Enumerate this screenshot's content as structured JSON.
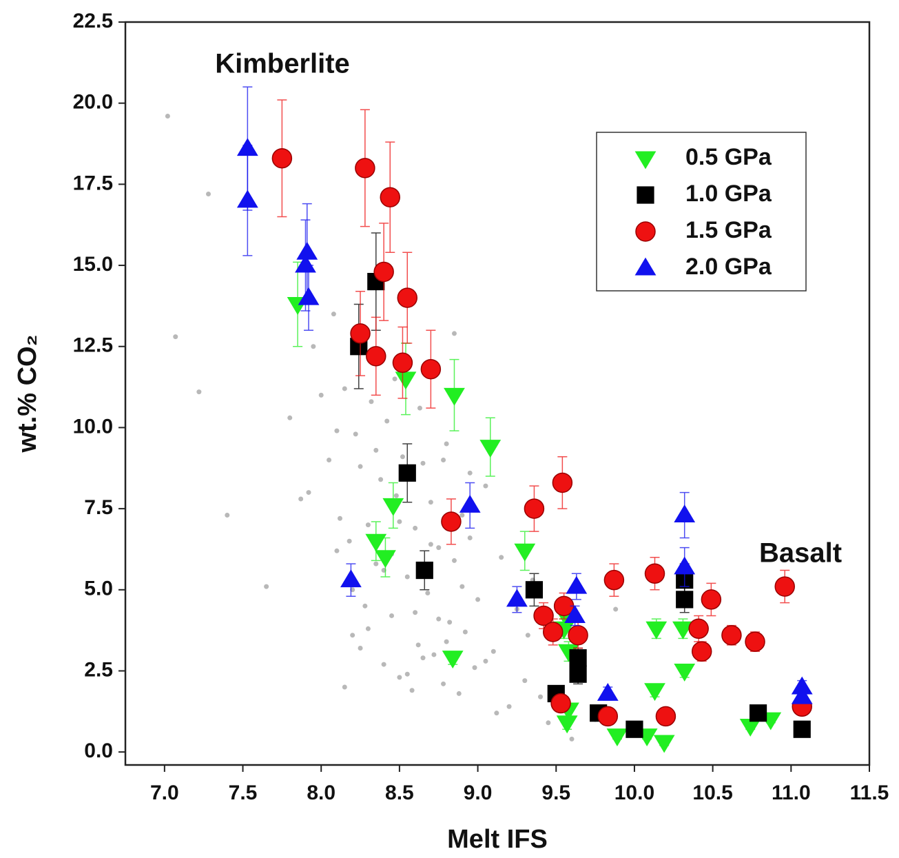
{
  "chart_data": {
    "type": "scatter",
    "x_label": "Melt IFS",
    "y_label": "wt.% CO₂",
    "annotations": [
      "Kimberlite",
      "Basalt"
    ],
    "xlim": [
      6.75,
      11.5
    ],
    "ylim": [
      -0.4,
      22.5
    ],
    "xticks": [
      {
        "value": 7,
        "label": "7.0"
      },
      7.5,
      {
        "value": 8,
        "label": "8.0"
      },
      8.5,
      {
        "value": 9,
        "label": "9.0"
      },
      9.5,
      {
        "value": 10,
        "label": "10.0"
      },
      10.5,
      {
        "value": 11,
        "label": "11.0"
      },
      11.5
    ],
    "yticks": [
      {
        "value": 0,
        "label": "0.0"
      },
      2.5,
      {
        "value": 5,
        "label": "5.0"
      },
      7.5,
      {
        "value": 10,
        "label": "10.0"
      },
      12.5,
      {
        "value": 15,
        "label": "15.0"
      },
      17.5,
      {
        "value": 20,
        "label": "20.0"
      },
      22.5
    ],
    "legend": "upper right",
    "series": [
      {
        "color": "#b8b8b8",
        "marker": "dot",
        "x": [
          7.02,
          7.28,
          7.07,
          7.22,
          7.4,
          7.65,
          7.8,
          7.87,
          7.92,
          7.95,
          8.0,
          8.05,
          8.08,
          8.1,
          8.12,
          8.15,
          8.18,
          8.2,
          8.22,
          8.25,
          8.28,
          8.3,
          8.32,
          8.35,
          8.38,
          8.4,
          8.42,
          8.45,
          8.48,
          8.5,
          8.52,
          8.55,
          8.58,
          8.6,
          8.62,
          8.65,
          8.68,
          8.7,
          8.72,
          8.75,
          8.78,
          8.8,
          8.82,
          8.85,
          8.88,
          8.9,
          8.92,
          8.95,
          8.98,
          9.0,
          9.05,
          9.1,
          9.15,
          9.2,
          9.25,
          9.3,
          9.35,
          9.4,
          9.45,
          8.1,
          8.2,
          8.3,
          8.4,
          8.5,
          8.6,
          8.7,
          8.8,
          8.9,
          8.15,
          8.25,
          8.35,
          8.45,
          8.55,
          8.65,
          8.75,
          8.85,
          8.95,
          9.05,
          8.33,
          8.47,
          8.63,
          8.78,
          9.12,
          9.32,
          9.6,
          9.75,
          9.88
        ],
        "y": [
          19.6,
          17.2,
          12.8,
          11.1,
          7.3,
          5.1,
          10.3,
          7.8,
          8.0,
          12.5,
          11.0,
          9.0,
          13.5,
          9.9,
          7.2,
          11.2,
          6.5,
          3.6,
          9.8,
          8.8,
          4.5,
          7.0,
          10.8,
          5.8,
          8.4,
          2.7,
          10.2,
          4.2,
          7.9,
          2.3,
          9.1,
          5.4,
          1.9,
          6.9,
          3.3,
          8.9,
          4.9,
          7.7,
          3.0,
          6.3,
          2.1,
          9.5,
          4.0,
          5.9,
          1.8,
          7.3,
          3.7,
          6.6,
          2.6,
          4.7,
          8.2,
          3.1,
          6.0,
          1.4,
          4.4,
          2.2,
          5.3,
          1.7,
          0.9,
          6.2,
          5.0,
          3.8,
          5.6,
          7.1,
          4.3,
          6.4,
          3.4,
          5.1,
          2.0,
          3.2,
          9.3,
          6.1,
          2.4,
          2.9,
          4.1,
          12.9,
          8.6,
          2.8,
          12.0,
          11.5,
          10.6,
          9.0,
          1.2,
          3.6,
          0.4,
          1.0,
          4.4
        ]
      },
      {
        "name": "0.5 GPa",
        "color": "#22ee22",
        "marker": "triangle-down",
        "x": [
          7.85,
          8.54,
          8.85,
          9.08,
          8.46,
          8.35,
          8.41,
          9.3,
          9.56,
          9.55,
          9.58,
          8.84,
          10.14,
          10.31,
          10.32,
          10.13,
          9.58,
          9.57,
          9.89,
          10.08,
          10.19,
          10.74,
          10.87
        ],
        "y": [
          13.8,
          11.5,
          11.0,
          9.4,
          7.6,
          6.5,
          6.0,
          6.2,
          4.2,
          3.8,
          3.1,
          2.9,
          3.8,
          3.8,
          2.5,
          1.9,
          1.3,
          0.9,
          0.5,
          0.5,
          0.3,
          0.8,
          1.0
        ],
        "errors": [
          1.3,
          1.1,
          1.1,
          0.9,
          0.7,
          0.6,
          0.6,
          0.6,
          0.3,
          0.3,
          0.3,
          0.2,
          0.3,
          0.3,
          0.2,
          0.2,
          0.2,
          0.2,
          0.1,
          0.1,
          0.1,
          0.1,
          0.1
        ]
      },
      {
        "name": "1.0 GPa",
        "color": "#000000",
        "marker": "square",
        "x": [
          8.35,
          8.24,
          8.55,
          8.66,
          9.36,
          9.5,
          9.64,
          9.64,
          9.77,
          10.0,
          10.32,
          10.32,
          10.79,
          11.07
        ],
        "y": [
          14.5,
          12.5,
          8.6,
          5.6,
          5.0,
          1.8,
          2.9,
          2.4,
          1.2,
          0.7,
          4.7,
          5.3,
          1.2,
          0.7
        ],
        "errors": [
          1.5,
          1.3,
          0.9,
          0.6,
          0.5,
          0.2,
          0.3,
          0.3,
          0.2,
          0.1,
          0.4,
          0.5,
          0.1,
          0.1
        ]
      },
      {
        "name": "1.5 GPa",
        "color": "#ee1111",
        "marker": "circle",
        "x": [
          7.75,
          8.28,
          8.44,
          8.4,
          8.55,
          8.25,
          8.35,
          8.52,
          8.7,
          8.83,
          9.36,
          9.54,
          9.87,
          10.13,
          10.49,
          10.96,
          9.42,
          9.48,
          9.55,
          9.64,
          10.41,
          10.43,
          10.62,
          10.77,
          9.53,
          9.83,
          10.2,
          11.07
        ],
        "y": [
          18.3,
          18.0,
          17.1,
          14.8,
          14.0,
          12.9,
          12.2,
          12.0,
          11.8,
          7.1,
          7.5,
          8.3,
          5.3,
          5.5,
          4.7,
          5.1,
          4.2,
          3.7,
          4.5,
          3.6,
          3.8,
          3.1,
          3.6,
          3.4,
          1.5,
          1.1,
          1.1,
          1.4
        ],
        "errors": [
          1.8,
          1.8,
          1.7,
          1.5,
          1.4,
          1.3,
          1.2,
          1.1,
          1.2,
          0.7,
          0.7,
          0.8,
          0.5,
          0.5,
          0.5,
          0.5,
          0.4,
          0.4,
          0.4,
          0.4,
          0.4,
          0.3,
          0.3,
          0.3,
          0.2,
          0.2,
          0.2,
          0.2
        ]
      },
      {
        "name": "2.0 GPa",
        "color": "#1111ee",
        "marker": "triangle-up",
        "x": [
          7.53,
          7.53,
          7.91,
          7.9,
          7.92,
          8.95,
          8.19,
          9.25,
          9.63,
          9.62,
          9.83,
          10.32,
          10.32,
          11.07,
          11.07
        ],
        "y": [
          18.6,
          17.0,
          15.4,
          15.0,
          14.0,
          7.6,
          5.3,
          4.7,
          5.1,
          4.2,
          1.8,
          7.3,
          5.7,
          2.0,
          1.7
        ],
        "errors": [
          1.9,
          1.7,
          1.5,
          1.4,
          1.0,
          0.7,
          0.5,
          0.4,
          0.4,
          0.3,
          0.2,
          0.7,
          0.6,
          0.2,
          0.2
        ]
      }
    ]
  }
}
